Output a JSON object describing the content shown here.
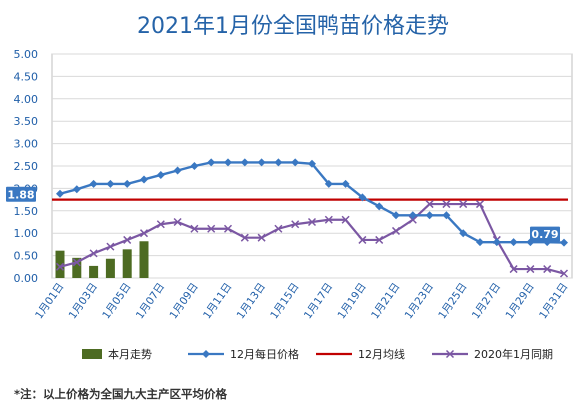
{
  "chart_data": {
    "type": "line",
    "title": "2021年1月份全国鸭苗价格走势",
    "ylim": [
      0,
      5
    ],
    "y_ticks": [
      "5.00",
      "4.50",
      "4.00",
      "3.50",
      "3.00",
      "2.50",
      "2.00",
      "1.50",
      "1.00",
      "0.50",
      "0.00"
    ],
    "x_tick_labels": [
      "1月01日",
      "1月03日",
      "1月05日",
      "1月07日",
      "1月09日",
      "1月11日",
      "1月13日",
      "1月15日",
      "1月17日",
      "1月19日",
      "1月21日",
      "1月23日",
      "1月25日",
      "1月27日",
      "1月29日",
      "1月31日"
    ],
    "grid": "horizontal",
    "legend_position": "bottom",
    "series": [
      {
        "name": "本月走势",
        "type": "bar",
        "color": "#4d6b22",
        "values": [
          0.61,
          0.45,
          0.27,
          0.43,
          0.64,
          0.82
        ]
      },
      {
        "name": "12月每日价格",
        "type": "line",
        "marker": "diamond",
        "color": "#3a78c2",
        "values": [
          1.88,
          1.98,
          2.1,
          2.1,
          2.1,
          2.2,
          2.3,
          2.4,
          2.5,
          2.58,
          2.58,
          2.58,
          2.58,
          2.58,
          2.58,
          2.55,
          2.1,
          2.1,
          1.8,
          1.6,
          1.4,
          1.4,
          1.4,
          1.4,
          1.0,
          0.8,
          0.8,
          0.8,
          0.8,
          0.8,
          0.79
        ]
      },
      {
        "name": "12月均线",
        "type": "line",
        "color": "#c00000",
        "value": 1.75
      },
      {
        "name": "2020年1月同期",
        "type": "line",
        "marker": "x",
        "color": "#7b57a3",
        "values": [
          0.25,
          0.35,
          0.55,
          0.7,
          0.85,
          1.0,
          1.2,
          1.25,
          1.1,
          1.1,
          1.1,
          0.9,
          0.9,
          1.1,
          1.2,
          1.25,
          1.3,
          1.3,
          0.85,
          0.85,
          1.05,
          1.3,
          1.65,
          1.65,
          1.65,
          1.65,
          0.85,
          0.2,
          0.2,
          0.2,
          0.1
        ]
      }
    ],
    "annotations": [
      {
        "text": "1.88",
        "series": "12月每日价格",
        "day": 1
      },
      {
        "text": "0.79",
        "series": "12月每日价格",
        "day": 31
      }
    ]
  },
  "footnote": "*注：以上价格为全国九大主产区平均价格"
}
